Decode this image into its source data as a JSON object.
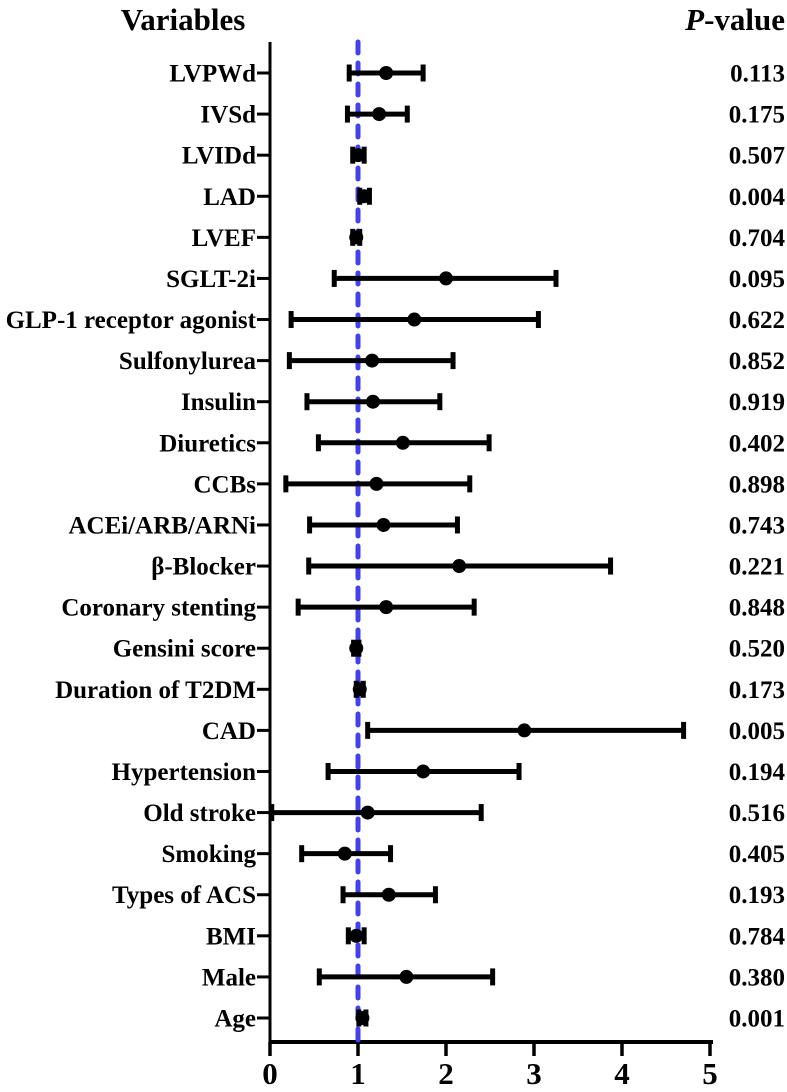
{
  "header": {
    "variables_title": "Variables",
    "pvalue_title_p": "P",
    "pvalue_title_rest": "-value"
  },
  "colors": {
    "reference_line": "#4340f0",
    "marker": "#000000",
    "axis": "#000000",
    "text": "#000000"
  },
  "chart_data": {
    "type": "scatter",
    "subtype": "forest-plot",
    "title": "",
    "xlabel": "",
    "ylabel": "",
    "xlim": [
      0,
      5
    ],
    "x_ticks": [
      "0",
      "1",
      "2",
      "3",
      "4",
      "5"
    ],
    "reference_line_x": 1,
    "grid": false,
    "legend": "none",
    "columns": {
      "left": "Variables",
      "right": "P-value"
    },
    "rows": [
      {
        "label": "LVPWd",
        "estimate": 1.32,
        "ci_low": 0.9,
        "ci_high": 1.74,
        "p_value": "0.113"
      },
      {
        "label": "IVSd",
        "estimate": 1.24,
        "ci_low": 0.88,
        "ci_high": 1.56,
        "p_value": "0.175"
      },
      {
        "label": "LVIDd",
        "estimate": 1.0,
        "ci_low": 0.94,
        "ci_high": 1.07,
        "p_value": "0.507"
      },
      {
        "label": "LAD",
        "estimate": 1.07,
        "ci_low": 1.02,
        "ci_high": 1.13,
        "p_value": "0.004"
      },
      {
        "label": "LVEF",
        "estimate": 0.98,
        "ci_low": 0.94,
        "ci_high": 1.02,
        "p_value": "0.704"
      },
      {
        "label": "SGLT-2i",
        "estimate": 2.0,
        "ci_low": 0.73,
        "ci_high": 3.25,
        "p_value": "0.095"
      },
      {
        "label": "GLP-1 receptor agonist",
        "estimate": 1.64,
        "ci_low": 0.24,
        "ci_high": 3.05,
        "p_value": "0.622"
      },
      {
        "label": "Sulfonylurea",
        "estimate": 1.16,
        "ci_low": 0.22,
        "ci_high": 2.08,
        "p_value": "0.852"
      },
      {
        "label": "Insulin",
        "estimate": 1.17,
        "ci_low": 0.42,
        "ci_high": 1.93,
        "p_value": "0.919"
      },
      {
        "label": "Diuretics",
        "estimate": 1.51,
        "ci_low": 0.55,
        "ci_high": 2.49,
        "p_value": "0.402"
      },
      {
        "label": "CCBs",
        "estimate": 1.21,
        "ci_low": 0.18,
        "ci_high": 2.27,
        "p_value": "0.898"
      },
      {
        "label": "ACEi/ARB/ARNi",
        "estimate": 1.29,
        "ci_low": 0.45,
        "ci_high": 2.13,
        "p_value": "0.743"
      },
      {
        "label": "β-Blocker",
        "estimate": 2.15,
        "ci_low": 0.44,
        "ci_high": 3.87,
        "p_value": "0.221"
      },
      {
        "label": "Coronary stenting",
        "estimate": 1.32,
        "ci_low": 0.32,
        "ci_high": 2.32,
        "p_value": "0.848"
      },
      {
        "label": "Gensini score",
        "estimate": 0.98,
        "ci_low": 0.95,
        "ci_high": 1.01,
        "p_value": "0.520"
      },
      {
        "label": "Duration of T2DM",
        "estimate": 1.02,
        "ci_low": 0.98,
        "ci_high": 1.06,
        "p_value": "0.173"
      },
      {
        "label": "CAD",
        "estimate": 2.89,
        "ci_low": 1.11,
        "ci_high": 4.7,
        "p_value": "0.005"
      },
      {
        "label": "Hypertension",
        "estimate": 1.74,
        "ci_low": 0.66,
        "ci_high": 2.83,
        "p_value": "0.194"
      },
      {
        "label": "Old stroke",
        "estimate": 1.11,
        "ci_low": 0.02,
        "ci_high": 2.4,
        "p_value": "0.516"
      },
      {
        "label": "Smoking",
        "estimate": 0.85,
        "ci_low": 0.36,
        "ci_high": 1.37,
        "p_value": "0.405"
      },
      {
        "label": "Types of ACS",
        "estimate": 1.35,
        "ci_low": 0.83,
        "ci_high": 1.88,
        "p_value": "0.193"
      },
      {
        "label": "BMI",
        "estimate": 0.98,
        "ci_low": 0.89,
        "ci_high": 1.07,
        "p_value": "0.784"
      },
      {
        "label": "Male",
        "estimate": 1.55,
        "ci_low": 0.56,
        "ci_high": 2.53,
        "p_value": "0.380"
      },
      {
        "label": "Age",
        "estimate": 1.05,
        "ci_low": 1.01,
        "ci_high": 1.09,
        "p_value": "0.001"
      }
    ]
  }
}
